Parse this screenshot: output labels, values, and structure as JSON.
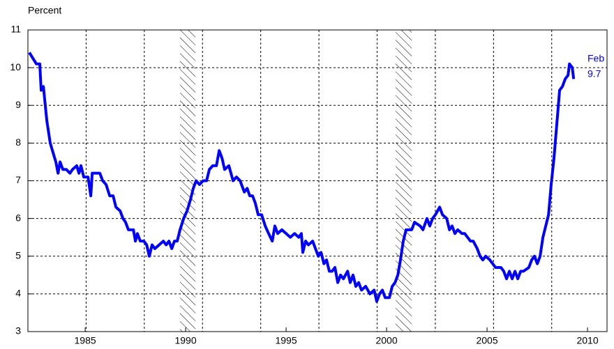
{
  "chart_data": {
    "type": "line",
    "y_label": "Percent",
    "x": [
      1982.22,
      1982.57,
      1982.74,
      1982.81,
      1982.92,
      1983.09,
      1983.26,
      1983.37,
      1983.54,
      1983.65,
      1983.75,
      1983.89,
      1984.06,
      1984.24,
      1984.37,
      1984.58,
      1984.69,
      1984.79,
      1984.93,
      1985.14,
      1985.28,
      1985.35,
      1985.56,
      1985.73,
      1985.87,
      1986.04,
      1986.22,
      1986.39,
      1986.53,
      1986.74,
      1986.88,
      1987.01,
      1987.15,
      1987.4,
      1987.5,
      1987.6,
      1987.74,
      1987.92,
      1988.06,
      1988.19,
      1988.33,
      1988.47,
      1988.68,
      1988.89,
      1989.03,
      1989.17,
      1989.31,
      1989.44,
      1989.58,
      1989.72,
      1989.9,
      1990.07,
      1990.24,
      1990.38,
      1990.52,
      1990.69,
      1990.87,
      1991.04,
      1991.18,
      1991.35,
      1991.53,
      1991.67,
      1991.81,
      1991.94,
      1992.15,
      1992.36,
      1992.53,
      1992.71,
      1992.92,
      1993.06,
      1993.19,
      1993.33,
      1993.47,
      1993.61,
      1993.78,
      1993.96,
      1994.13,
      1994.31,
      1994.44,
      1994.58,
      1994.79,
      1995.0,
      1995.21,
      1995.42,
      1995.63,
      1995.76,
      1995.83,
      1995.97,
      1996.11,
      1996.32,
      1996.46,
      1996.6,
      1996.74,
      1996.88,
      1997.01,
      1997.15,
      1997.29,
      1997.43,
      1997.57,
      1997.71,
      1997.85,
      1998.06,
      1998.19,
      1998.33,
      1998.47,
      1998.61,
      1998.75,
      1998.96,
      1999.17,
      1999.38,
      1999.51,
      1999.65,
      1999.79,
      1999.93,
      2000.14,
      2000.28,
      2000.42,
      2000.56,
      2000.69,
      2000.83,
      2000.97,
      2001.25,
      2001.39,
      2001.67,
      2001.81,
      2002.01,
      2002.15,
      2002.29,
      2002.43,
      2002.64,
      2002.78,
      2002.99,
      2003.13,
      2003.26,
      2003.4,
      2003.54,
      2003.75,
      2003.89,
      2004.03,
      2004.17,
      2004.31,
      2004.51,
      2004.65,
      2004.79,
      2004.93,
      2005.14,
      2005.28,
      2005.42,
      2005.69,
      2005.83,
      2005.97,
      2006.11,
      2006.25,
      2006.39,
      2006.53,
      2006.67,
      2006.81,
      2007.08,
      2007.22,
      2007.36,
      2007.5,
      2007.64,
      2007.78,
      2007.92,
      2008.06,
      2008.19,
      2008.33,
      2008.47,
      2008.61,
      2008.75,
      2008.89,
      2009.03,
      2009.1,
      2009.24,
      2009.31
    ],
    "series": [
      {
        "color": "#0000ff",
        "values": [
          10.4,
          10.1,
          10.1,
          9.4,
          9.5,
          8.6,
          8.0,
          7.8,
          7.5,
          7.2,
          7.5,
          7.3,
          7.3,
          7.2,
          7.3,
          7.4,
          7.2,
          7.4,
          7.1,
          7.1,
          6.6,
          7.2,
          7.2,
          7.2,
          7.0,
          6.9,
          6.6,
          6.6,
          6.3,
          6.2,
          6.0,
          5.9,
          5.7,
          5.7,
          5.4,
          5.6,
          5.4,
          5.4,
          5.3,
          5.0,
          5.3,
          5.2,
          5.3,
          5.4,
          5.3,
          5.4,
          5.2,
          5.4,
          5.4,
          5.7,
          6.0,
          6.2,
          6.5,
          6.8,
          7.0,
          6.9,
          7.0,
          7.0,
          7.3,
          7.4,
          7.4,
          7.8,
          7.6,
          7.3,
          7.4,
          7.0,
          7.1,
          7.0,
          6.7,
          6.8,
          6.6,
          6.6,
          6.4,
          6.1,
          6.1,
          5.8,
          5.6,
          5.4,
          5.8,
          5.6,
          5.7,
          5.6,
          5.5,
          5.6,
          5.5,
          5.6,
          5.1,
          5.4,
          5.3,
          5.4,
          5.2,
          5.0,
          5.1,
          4.8,
          4.9,
          4.6,
          4.6,
          4.7,
          4.3,
          4.5,
          4.4,
          4.6,
          4.3,
          4.5,
          4.2,
          4.3,
          4.1,
          4.2,
          4.0,
          4.1,
          3.8,
          4.0,
          4.1,
          3.9,
          3.9,
          4.2,
          4.3,
          4.5,
          4.9,
          5.4,
          5.7,
          5.7,
          5.9,
          5.8,
          5.7,
          6.0,
          5.8,
          6.0,
          6.1,
          6.3,
          6.1,
          6.0,
          5.7,
          5.8,
          5.6,
          5.7,
          5.6,
          5.6,
          5.5,
          5.4,
          5.4,
          5.2,
          5.0,
          4.9,
          5.0,
          4.9,
          4.8,
          4.7,
          4.7,
          4.6,
          4.4,
          4.6,
          4.4,
          4.6,
          4.4,
          4.6,
          4.6,
          4.7,
          4.9,
          5.0,
          4.8,
          5.0,
          5.5,
          5.8,
          6.1,
          6.9,
          7.6,
          8.5,
          9.4,
          9.5,
          9.7,
          9.8,
          10.1,
          10.0,
          9.7
        ]
      }
    ],
    "annotation": {
      "month": "Feb",
      "value": 9.7
    },
    "recessions": [
      [
        1989.72,
        1990.49
      ],
      [
        2000.45,
        2001.25
      ]
    ],
    "xlim": [
      1982.15,
      2010.97
    ],
    "xticks": [
      1985,
      1990,
      1995,
      2000,
      2005,
      2010
    ],
    "ylim": [
      3,
      11
    ],
    "yticks": [
      3,
      4,
      5,
      6,
      7,
      8,
      9,
      10,
      11
    ],
    "grid": true
  }
}
